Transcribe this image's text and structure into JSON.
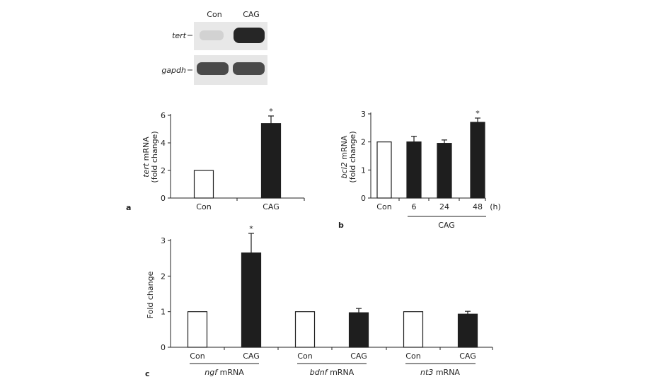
{
  "blot": {
    "lanes": [
      "Con",
      "CAG"
    ],
    "rows": [
      "tert",
      "gapdh"
    ]
  },
  "chart_data": [
    {
      "panel": "a",
      "type": "bar",
      "categories": [
        "Con",
        "CAG"
      ],
      "values": [
        2.0,
        5.4
      ],
      "errors": [
        0,
        0.55
      ],
      "fills": [
        "#ffffff",
        "#1e1e1e"
      ],
      "significance": [
        "",
        "*"
      ],
      "ylabel_gene": "tert",
      "ylabel_rest": " mRNA",
      "ylabel2": "(fold change)",
      "yticks": [
        "0",
        "2",
        "4",
        "6"
      ],
      "ylim": [
        0,
        6
      ]
    },
    {
      "panel": "b",
      "type": "bar",
      "categories": [
        "Con",
        "6",
        "24",
        "48"
      ],
      "unit": "(h)",
      "group_label": "CAG",
      "values": [
        2.0,
        2.0,
        1.95,
        2.7
      ],
      "errors": [
        0,
        0.2,
        0.12,
        0.15
      ],
      "fills": [
        "#ffffff",
        "#1e1e1e",
        "#1e1e1e",
        "#1e1e1e"
      ],
      "significance": [
        "",
        "",
        "",
        "*"
      ],
      "ylabel_gene": "bcl2",
      "ylabel_rest": " mRNA",
      "ylabel2": "(fold change)",
      "yticks": [
        "0",
        "1",
        "2",
        "3"
      ],
      "ylim": [
        0,
        3
      ]
    },
    {
      "panel": "c",
      "type": "bar",
      "categories": [
        "Con",
        "CAG",
        "Con",
        "CAG",
        "Con",
        "CAG"
      ],
      "groups": [
        {
          "gene": "ngf",
          "suffix": " mRNA"
        },
        {
          "gene": "bdnf",
          "suffix": " mRNA"
        },
        {
          "gene": "nt3",
          "suffix": " mRNA"
        }
      ],
      "values": [
        1.0,
        2.65,
        1.0,
        0.97,
        1.0,
        0.93
      ],
      "errors": [
        0,
        0.55,
        0,
        0.12,
        0,
        0.08
      ],
      "fills": [
        "#ffffff",
        "#1e1e1e",
        "#ffffff",
        "#1e1e1e",
        "#ffffff",
        "#1e1e1e"
      ],
      "significance": [
        "",
        "*",
        "",
        "",
        "",
        ""
      ],
      "ylabel": "Fold change",
      "yticks": [
        "0",
        "1",
        "2",
        "3"
      ],
      "ylim": [
        0,
        3
      ]
    }
  ]
}
